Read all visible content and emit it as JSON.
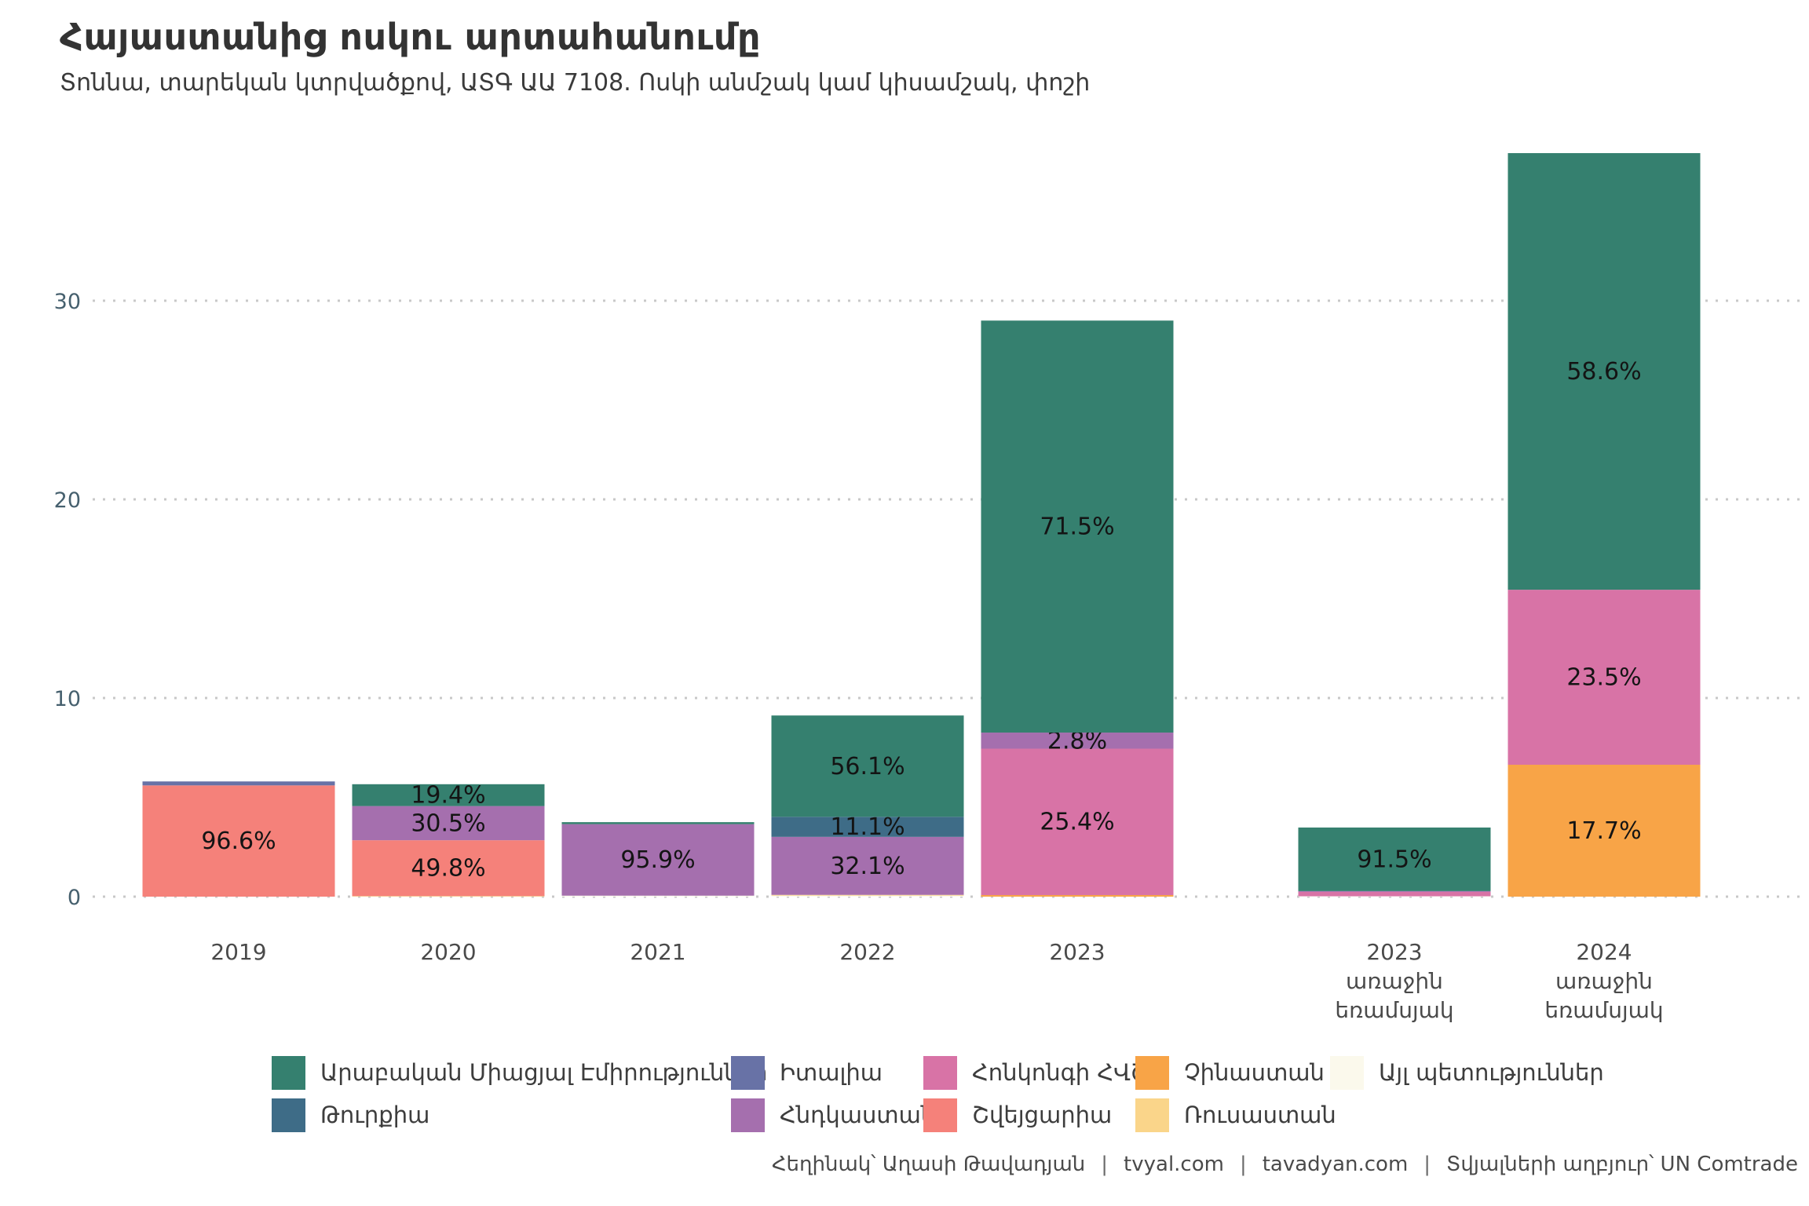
{
  "header": {
    "title": "Հայաստանից ոսկու արտահանումը",
    "subtitle": "Տոննա, տարեկան կտրվածքով, ԱՏԳ ԱԱ 7108. Ոսկի անմշակ կամ կիսամշակ, փոշի"
  },
  "chart_data": {
    "type": "bar",
    "stacked": true,
    "title": "Հայաստանից ոսկու արտահանումը",
    "subtitle": "Տոննա, տարեկան կտրվածքով, ԱՏԳ ԱԱ 7108. Ոսկի անմշակ կամ կիսամշակ, փոշի",
    "unit": "տոննա",
    "ylim": [
      0,
      38
    ],
    "yticks": [
      0,
      10,
      20,
      30
    ],
    "grid": "horizontal-dotted",
    "legend_position": "bottom",
    "categories": [
      "2019",
      "2020",
      "2021",
      "2022",
      "2023",
      "2023\nառաջին\nեռամսյակ",
      "2024\nառաջին\nեռամսյակ"
    ],
    "series": [
      {
        "name": "Այլ պետություններ",
        "color": "#FBF9EC",
        "values": [
          0,
          0,
          0.05,
          0.05,
          0,
          0.02,
          0
        ],
        "labels": [
          "",
          "",
          "",
          "",
          "",
          "",
          ""
        ]
      },
      {
        "name": "Ռուսաստան",
        "color": "#FAD58A",
        "values": [
          0,
          0.03,
          0,
          0.04,
          0,
          0,
          0
        ],
        "labels": [
          "",
          "",
          "",
          "",
          "",
          "",
          ""
        ]
      },
      {
        "name": "Չինաստան",
        "color": "#F8A447",
        "values": [
          0,
          0,
          0,
          0,
          0.08,
          0,
          6.64
        ],
        "labels": [
          "",
          "",
          "",
          "",
          "",
          "",
          "17.7%"
        ]
      },
      {
        "name": "Շվեյցարիա",
        "color": "#F5817A",
        "values": [
          5.6,
          2.81,
          0,
          0,
          0,
          0,
          0
        ],
        "labels": [
          "96.6%",
          "49.8%",
          "",
          "",
          "",
          "",
          ""
        ]
      },
      {
        "name": "Հոնկոնգի ՀՎՇ",
        "color": "#D873A6",
        "values": [
          0,
          0,
          0,
          0,
          7.37,
          0.22,
          8.81
        ],
        "labels": [
          "",
          "",
          "",
          "",
          "25.4%",
          "",
          "23.5%"
        ]
      },
      {
        "name": "Հնդկաստան",
        "color": "#A56FAE",
        "values": [
          0,
          1.72,
          3.6,
          2.92,
          0.81,
          0.04,
          0
        ],
        "labels": [
          "",
          "30.5%",
          "95.9%",
          "32.1%",
          "2.8%",
          "",
          ""
        ]
      },
      {
        "name": "Իտալիա",
        "color": "#6872A6",
        "values": [
          0.2,
          0,
          0,
          0,
          0,
          0,
          0
        ],
        "labels": [
          "",
          "",
          "",
          "",
          "",
          "",
          ""
        ]
      },
      {
        "name": "Թուրքիա",
        "color": "#3E6C87",
        "values": [
          0,
          0,
          0,
          1.01,
          0,
          0,
          0
        ],
        "labels": [
          "",
          "",
          "",
          "11.1%",
          "",
          "",
          ""
        ]
      },
      {
        "name": "Արաբական Միացյալ Էմիրություններ",
        "color": "#35806F",
        "values": [
          0,
          1.1,
          0.1,
          5.1,
          20.74,
          3.2,
          21.98
        ],
        "labels": [
          "",
          "19.4%",
          "",
          "56.1%",
          "71.5%",
          "91.5%",
          "58.6%"
        ]
      }
    ]
  },
  "legend": {
    "items": [
      {
        "label": "Արաբական Միացյալ Էմիրություններ",
        "color": "#35806F"
      },
      {
        "label": "Իտալիա",
        "color": "#6872A6"
      },
      {
        "label": "Հոնկոնգի ՀՎՇ",
        "color": "#D873A6"
      },
      {
        "label": "Չինաստան",
        "color": "#F8A447"
      },
      {
        "label": "Այլ պետություններ",
        "color": "#FBF9EC"
      },
      {
        "label": "Թուրքիա",
        "color": "#3E6C87"
      },
      {
        "label": "Հնդկաստան",
        "color": "#A56FAE"
      },
      {
        "label": "Շվեյցարիա",
        "color": "#F5817A"
      },
      {
        "label": "Ռուսաստան",
        "color": "#FAD58A"
      }
    ]
  },
  "footer": {
    "parts": [
      "Հեղինակ՝ Աղասի Թավադյան",
      "tvyal.com",
      "tavadyan.com",
      "Տվյալների աղբյուր՝ UN Comtrade"
    ]
  },
  "style": {
    "grid_color": "#c8c8c8",
    "ytick_color": "#46606e",
    "xtick_color": "#4a4a4a",
    "bar_label_color": "#141414"
  }
}
